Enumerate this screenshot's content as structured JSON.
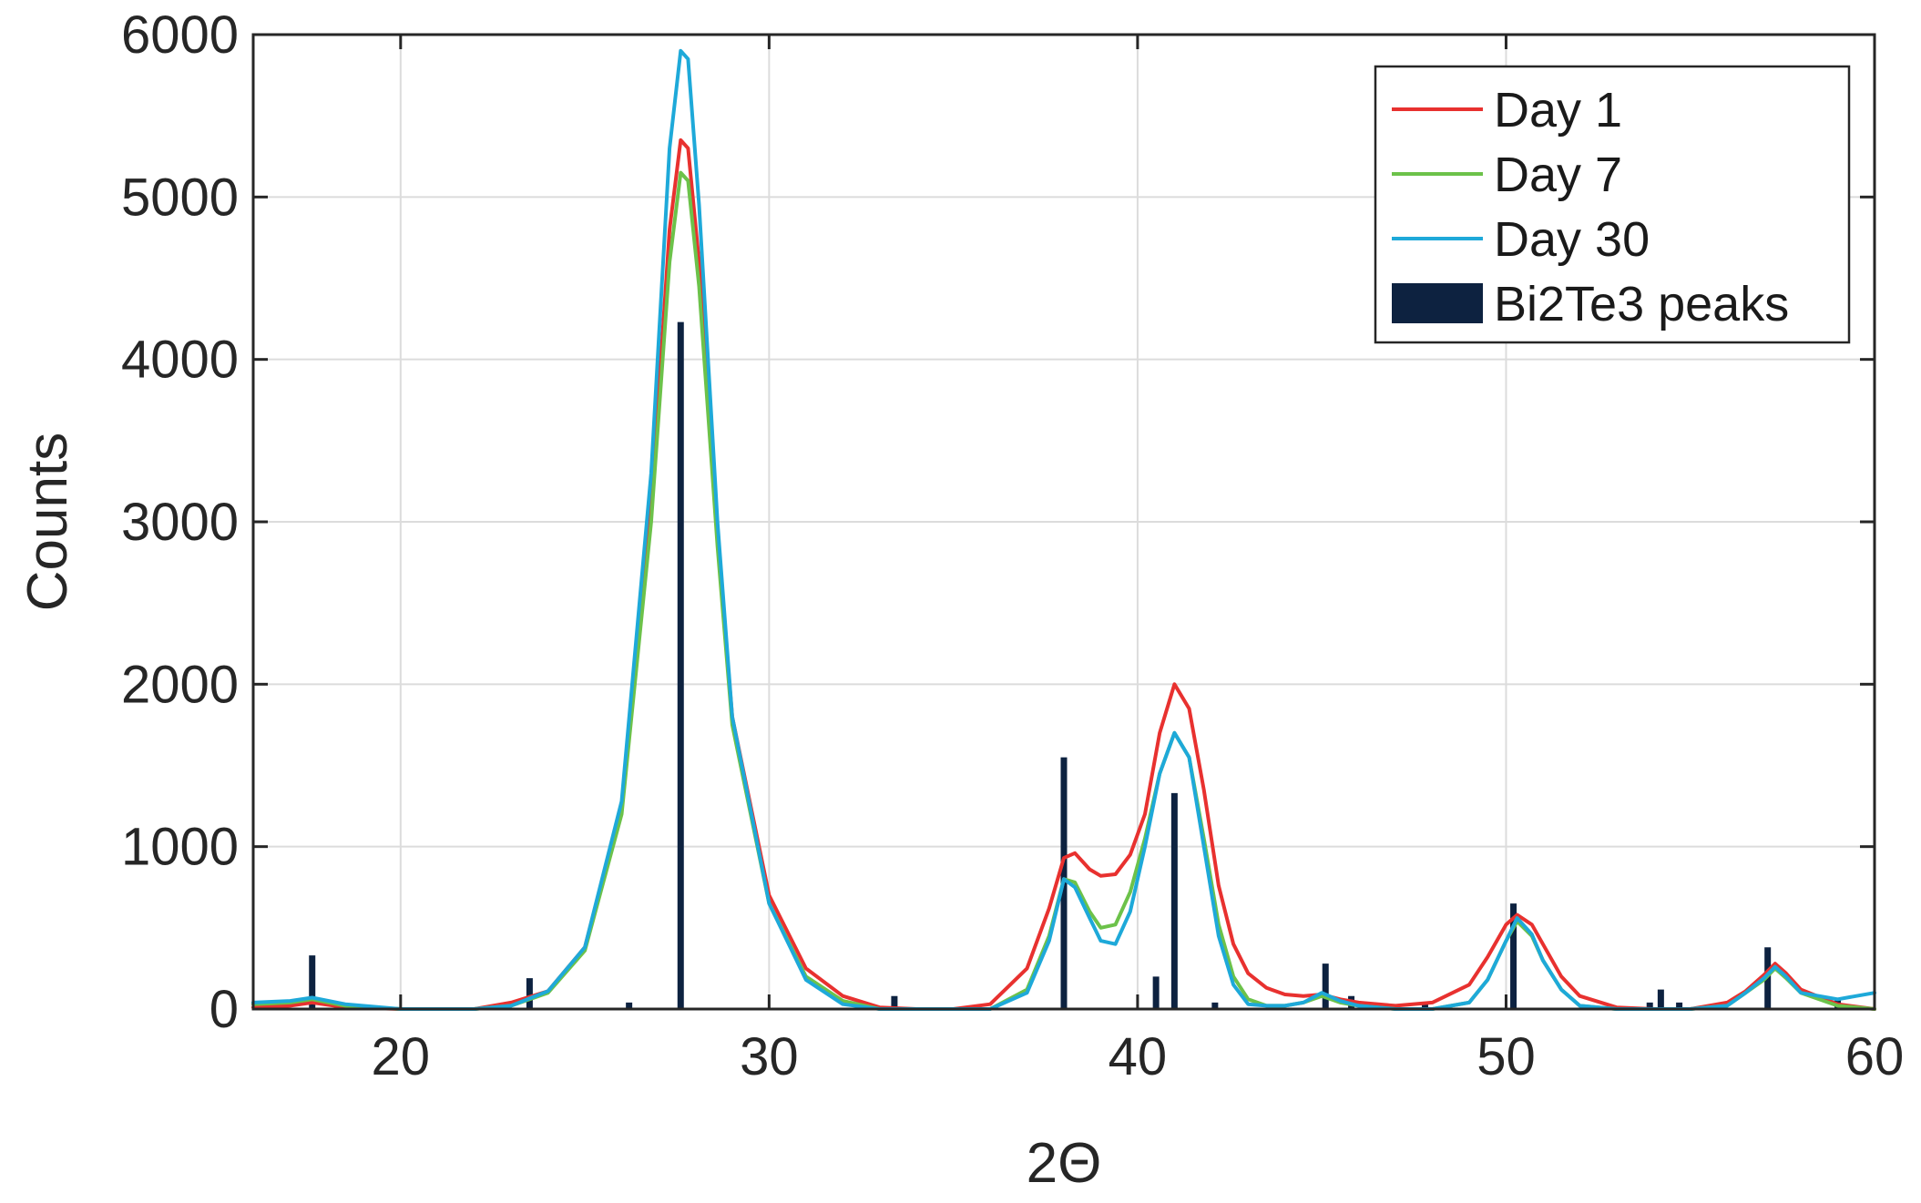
{
  "chart_data": {
    "type": "line",
    "title": "",
    "xlabel": "2Θ",
    "ylabel": "Counts",
    "xlim": [
      16,
      60
    ],
    "ylim": [
      0,
      6000
    ],
    "xticks": [
      20,
      30,
      40,
      50,
      60
    ],
    "yticks": [
      0,
      1000,
      2000,
      3000,
      4000,
      5000,
      6000
    ],
    "grid": true,
    "legend_position": "top-right",
    "series": [
      {
        "name": "Day 1",
        "color": "#e8312f",
        "x": [
          16,
          17,
          17.6,
          18.5,
          20,
          22,
          23,
          24,
          25,
          26,
          26.8,
          27.3,
          27.6,
          27.8,
          28.1,
          28.6,
          29,
          30,
          31,
          32,
          33,
          34,
          35,
          36,
          37,
          37.6,
          38,
          38.3,
          38.7,
          39,
          39.4,
          39.8,
          40.2,
          40.6,
          41,
          41.4,
          41.8,
          42.2,
          42.6,
          43,
          43.5,
          44,
          44.5,
          45,
          45.5,
          46,
          47,
          48,
          49,
          49.5,
          50,
          50.3,
          50.7,
          51,
          51.5,
          52,
          53,
          54,
          55,
          56,
          56.5,
          57,
          57.3,
          57.6,
          58,
          59,
          60
        ],
        "y": [
          10,
          20,
          40,
          10,
          0,
          0,
          40,
          110,
          380,
          1250,
          3100,
          4800,
          5350,
          5300,
          4600,
          2900,
          1800,
          700,
          250,
          80,
          10,
          0,
          0,
          30,
          250,
          620,
          930,
          960,
          860,
          820,
          830,
          950,
          1200,
          1700,
          2000,
          1850,
          1350,
          760,
          400,
          220,
          130,
          90,
          80,
          90,
          60,
          40,
          20,
          40,
          150,
          320,
          520,
          580,
          520,
          400,
          200,
          80,
          10,
          0,
          0,
          40,
          110,
          210,
          280,
          220,
          120,
          30,
          0
        ]
      },
      {
        "name": "Day 7",
        "color": "#6cc24a",
        "x": [
          16,
          17,
          17.6,
          18.5,
          20,
          22,
          23,
          24,
          25,
          26,
          26.8,
          27.3,
          27.6,
          27.8,
          28.1,
          28.6,
          29,
          30,
          31,
          32,
          33,
          34,
          35,
          36,
          37,
          37.6,
          38,
          38.3,
          38.7,
          39,
          39.4,
          39.8,
          40.2,
          40.6,
          41,
          41.4,
          41.8,
          42.2,
          42.6,
          43,
          43.5,
          44,
          44.5,
          45,
          45.5,
          46,
          47,
          48,
          49,
          49.5,
          50,
          50.3,
          50.7,
          51,
          51.5,
          52,
          53,
          54,
          55,
          56,
          56.5,
          57,
          57.3,
          57.6,
          58,
          59,
          60
        ],
        "y": [
          30,
          40,
          60,
          20,
          0,
          0,
          20,
          100,
          360,
          1200,
          3000,
          4600,
          5150,
          5100,
          4450,
          2850,
          1750,
          650,
          200,
          50,
          0,
          0,
          0,
          0,
          120,
          450,
          800,
          780,
          600,
          500,
          520,
          720,
          1050,
          1450,
          1700,
          1550,
          1050,
          520,
          200,
          60,
          20,
          20,
          40,
          80,
          40,
          20,
          0,
          0,
          40,
          180,
          420,
          540,
          450,
          300,
          120,
          20,
          0,
          0,
          0,
          20,
          100,
          180,
          250,
          190,
          100,
          20,
          0
        ]
      },
      {
        "name": "Day 30",
        "color": "#1ea9d9",
        "x": [
          16,
          17,
          17.6,
          18.5,
          20,
          22,
          23,
          24,
          25,
          26,
          26.8,
          27.3,
          27.6,
          27.8,
          28.1,
          28.6,
          29,
          30,
          31,
          32,
          33,
          34,
          35,
          36,
          37,
          37.6,
          38,
          38.3,
          38.7,
          39,
          39.4,
          39.8,
          40.2,
          40.6,
          41,
          41.4,
          41.8,
          42.2,
          42.6,
          43,
          43.5,
          44,
          44.5,
          45,
          45.5,
          46,
          47,
          48,
          49,
          49.5,
          50,
          50.3,
          50.7,
          51,
          51.5,
          52,
          53,
          54,
          55,
          56,
          56.5,
          57,
          57.3,
          57.6,
          58,
          59,
          60
        ],
        "y": [
          40,
          50,
          70,
          30,
          0,
          0,
          20,
          110,
          380,
          1280,
          3300,
          5300,
          5900,
          5850,
          4950,
          3000,
          1800,
          650,
          180,
          30,
          0,
          0,
          0,
          0,
          100,
          420,
          800,
          750,
          560,
          420,
          400,
          600,
          1000,
          1450,
          1700,
          1550,
          1000,
          450,
          150,
          30,
          20,
          20,
          40,
          100,
          50,
          20,
          0,
          0,
          40,
          180,
          420,
          560,
          460,
          300,
          120,
          20,
          0,
          0,
          0,
          20,
          100,
          190,
          260,
          200,
          100,
          60,
          100
        ]
      },
      {
        "name": "Bi2Te3 peaks",
        "type": "stem",
        "color": "#0d2240",
        "x": [
          17.6,
          23.5,
          26.2,
          27.6,
          33.4,
          38.0,
          40.5,
          41.0,
          42.1,
          45.1,
          45.8,
          47.8,
          50.2,
          53.9,
          54.2,
          54.7,
          57.1,
          59.0
        ],
        "y": [
          330,
          190,
          40,
          4230,
          80,
          1550,
          200,
          1330,
          40,
          280,
          80,
          40,
          650,
          40,
          120,
          40,
          380,
          60
        ]
      }
    ]
  }
}
